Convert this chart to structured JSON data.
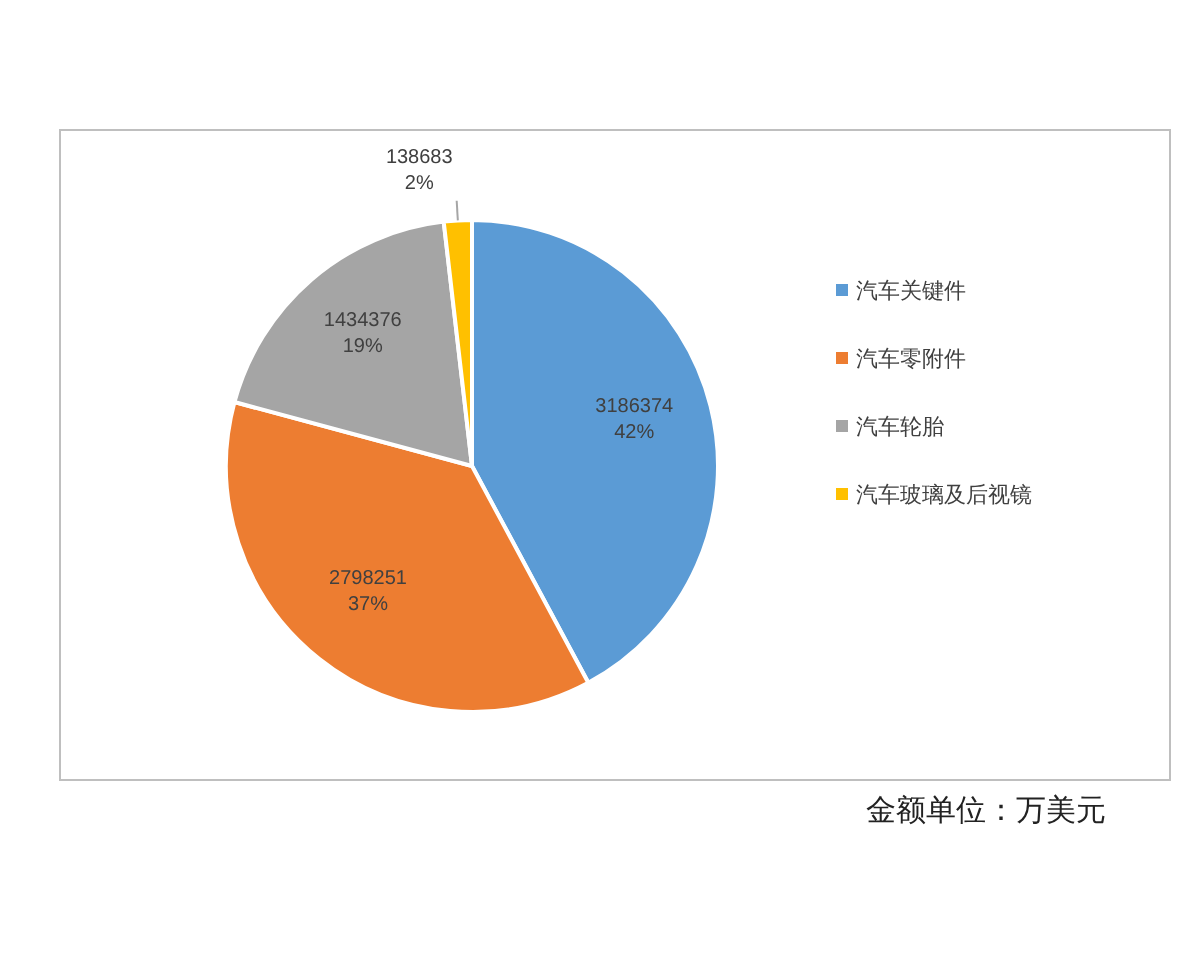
{
  "chart_data": {
    "type": "pie",
    "categories": [
      "汽车关键件",
      "汽车零附件",
      "汽车轮胎",
      "汽车玻璃及后视镜"
    ],
    "values": [
      3186374,
      2798251,
      1434376,
      138683
    ],
    "colors": [
      "#5b9bd5",
      "#ed7d31",
      "#a5a5a5",
      "#ffc000"
    ],
    "value_labels": [
      "3186374\n42%",
      "2798251\n37%",
      "1434376\n19%",
      "138683\n2%"
    ],
    "legend": "right",
    "annotations": [
      "金额单位：万美元"
    ]
  }
}
